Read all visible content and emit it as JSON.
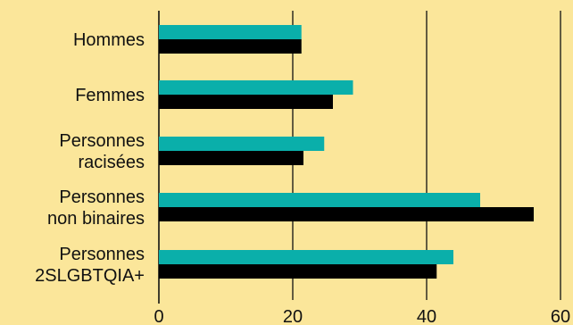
{
  "chart_data": {
    "type": "bar",
    "orientation": "horizontal",
    "categories": [
      [
        "Hommes"
      ],
      [
        "Femmes"
      ],
      [
        "Personnes",
        "racisées"
      ],
      [
        "Personnes",
        "non binaires"
      ],
      [
        "Personnes",
        "2SLGBTQIA+"
      ]
    ],
    "series": [
      {
        "color": "#0aafaa",
        "values": [
          21.3,
          29.0,
          24.7,
          48.0,
          44.0
        ]
      },
      {
        "color": "#000000",
        "values": [
          21.3,
          26.0,
          21.6,
          56.0,
          41.5
        ]
      }
    ],
    "xlim": [
      0,
      60
    ],
    "xticks": [
      0,
      20,
      40,
      60
    ],
    "grid": "vertical lines at ticks",
    "legend": "none",
    "background": "#fbe69a",
    "axis_color": "#111111"
  }
}
